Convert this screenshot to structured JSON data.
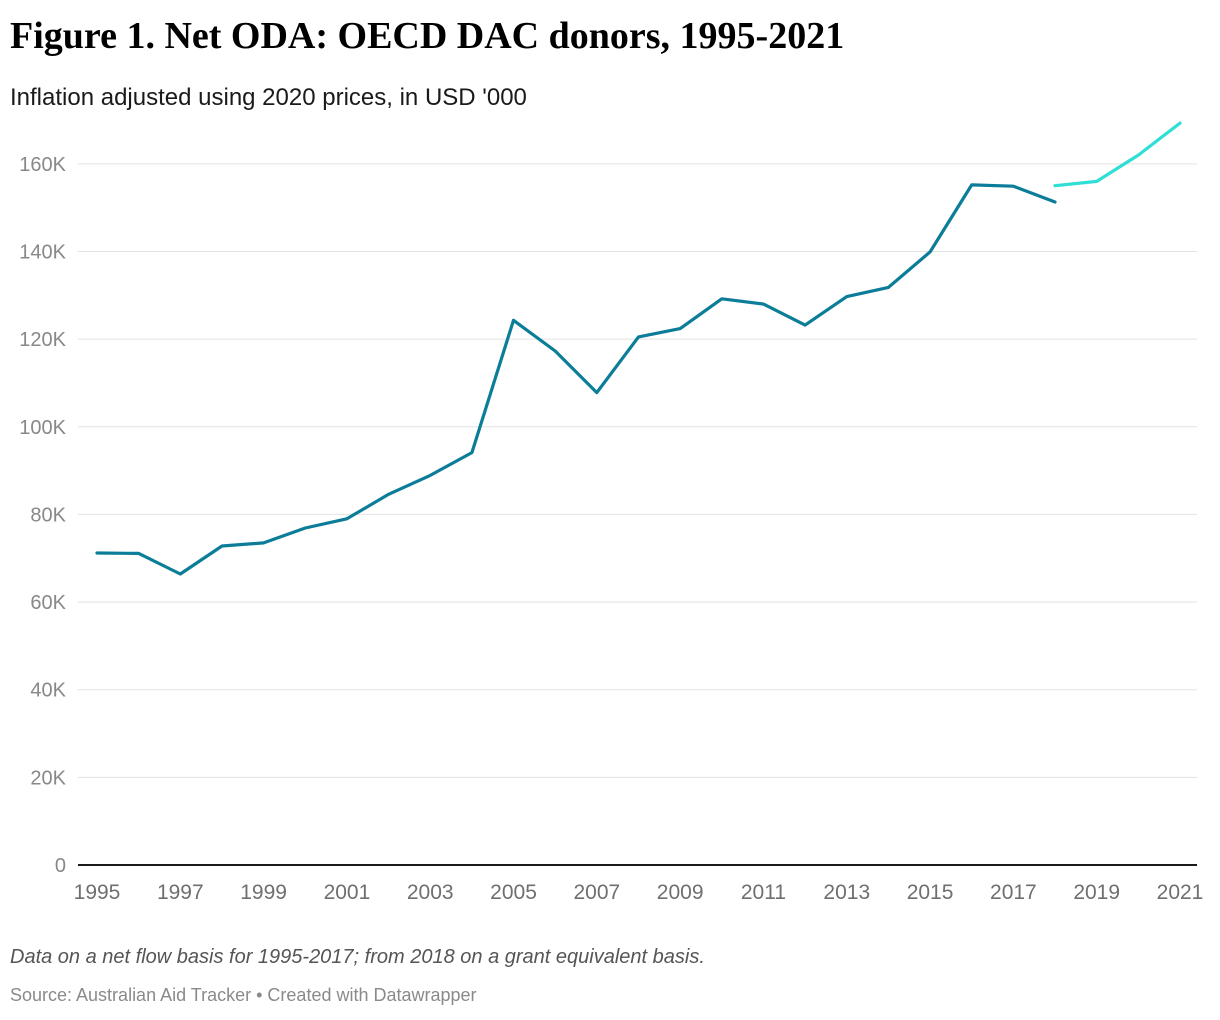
{
  "chart_data": {
    "type": "line",
    "title": "Figure 1. Net ODA: OECD DAC donors, 1995-2021",
    "subtitle": "Inflation adjusted using 2020 prices, in USD '000",
    "xlabel": "",
    "ylabel": "",
    "xlim": [
      1995,
      2021
    ],
    "ylim": [
      0,
      170000
    ],
    "x_ticks": [
      1995,
      1997,
      1999,
      2001,
      2003,
      2005,
      2007,
      2009,
      2011,
      2013,
      2015,
      2017,
      2019,
      2021
    ],
    "y_ticks": [
      {
        "value": 0,
        "label": "0"
      },
      {
        "value": 20000,
        "label": "20K"
      },
      {
        "value": 40000,
        "label": "40K"
      },
      {
        "value": 60000,
        "label": "60K"
      },
      {
        "value": 80000,
        "label": "80K"
      },
      {
        "value": 100000,
        "label": "100K"
      },
      {
        "value": 120000,
        "label": "120K"
      },
      {
        "value": 140000,
        "label": "140K"
      },
      {
        "value": 160000,
        "label": "160K"
      }
    ],
    "grid": true,
    "legend": "none",
    "series": [
      {
        "color": "#0b7d99",
        "x": [
          1995,
          1996,
          1997,
          1998,
          1999,
          2000,
          2001,
          2002,
          2003,
          2004,
          2005,
          2006,
          2007,
          2008,
          2009,
          2010,
          2011,
          2012,
          2013,
          2014,
          2015,
          2016,
          2017,
          2018
        ],
        "values": [
          71200,
          71100,
          66400,
          72800,
          73500,
          76900,
          79000,
          84600,
          88900,
          94100,
          124300,
          117300,
          107800,
          120500,
          122400,
          129200,
          128000,
          123200,
          129700,
          131800,
          139900,
          155200,
          154900,
          151300
        ]
      },
      {
        "color": "#2fdfd6",
        "x": [
          2018,
          2019,
          2020,
          2021
        ],
        "values": [
          155000,
          156000,
          162000,
          169300
        ]
      }
    ]
  },
  "note": "Data on a net flow basis for 1995-2017; from 2018 on a grant equivalent basis.",
  "source": "Source: Australian Aid Tracker • Created with Datawrapper",
  "colors": {
    "gridline": "#e2e2e2",
    "axis": "#1a1a1a",
    "tick_label": "#888888"
  }
}
